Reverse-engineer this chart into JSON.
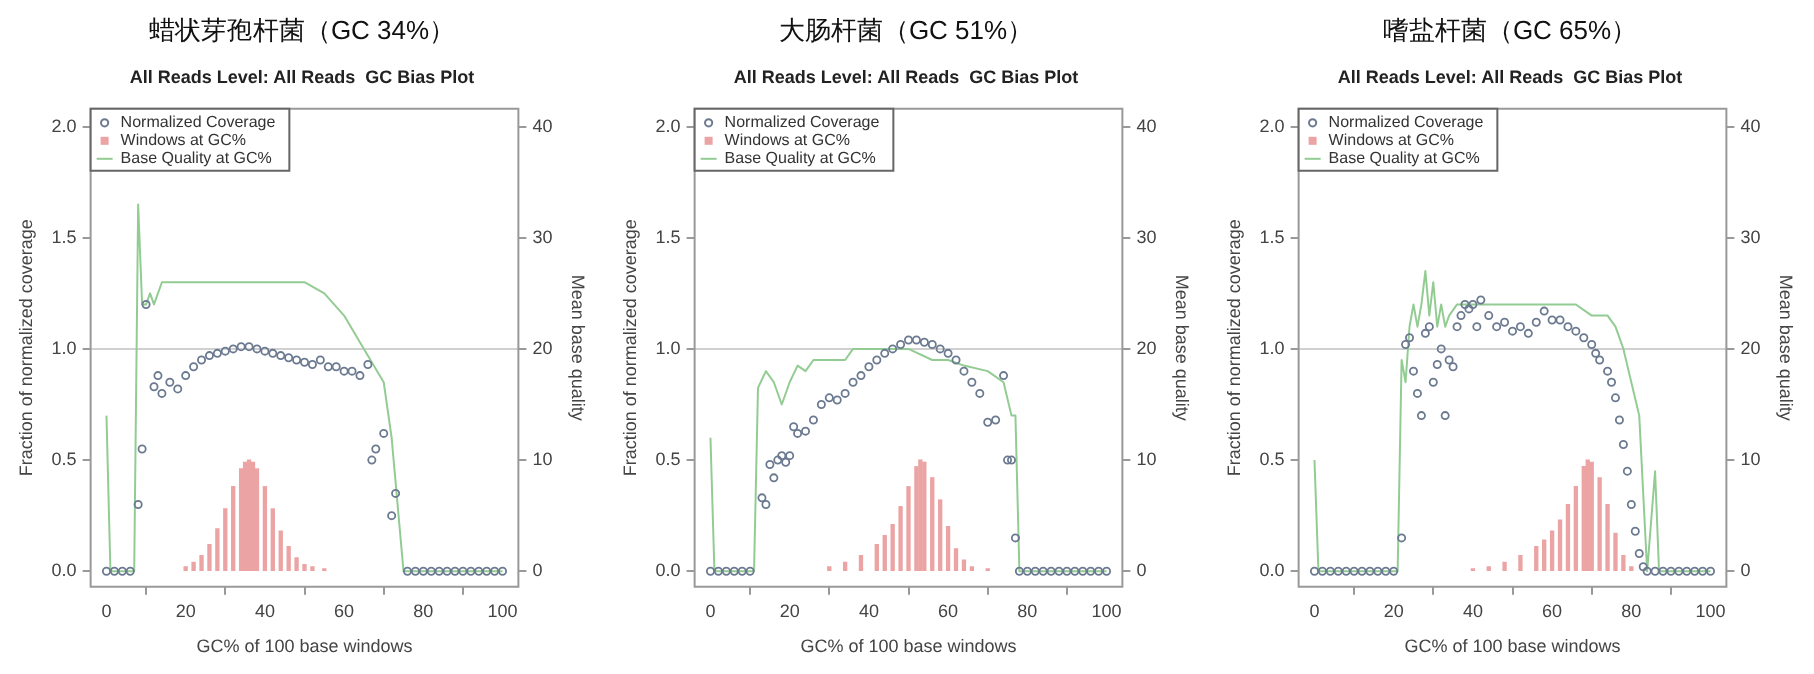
{
  "chart_data": [
    {
      "type": "scatter",
      "title": "蜡状芽孢杆菌（GC 34%）",
      "subtitle": "All Reads Level: All Reads  GC Bias Plot",
      "xlabel": "GC% of 100 base windows",
      "ylabel": "Fraction of normalized coverage",
      "y2label": "Mean base quality",
      "xlim": [
        -4,
        104
      ],
      "xticks": [
        0,
        20,
        40,
        60,
        80,
        100
      ],
      "ylim": [
        -0.07,
        2.08
      ],
      "yticks": [
        {
          "value": 0,
          "label": "0.0"
        },
        {
          "value": 0.5,
          "label": "0.5"
        },
        {
          "value": 1,
          "label": "1.0"
        },
        {
          "value": 1.5,
          "label": "1.5"
        },
        {
          "value": 2,
          "label": "2.0"
        }
      ],
      "y2lim": [
        -1.4,
        41.6
      ],
      "y2ticks": [
        0,
        10,
        20,
        30,
        40
      ],
      "legend": "top left",
      "ref_lines": [
        {
          "axis": "y",
          "value": 1.0,
          "color": "#d0d0d0"
        }
      ],
      "series": [
        {
          "name": "Normalized Coverage",
          "marker": "circle",
          "color": "#6b7a90",
          "x": [
            0,
            2,
            4,
            6,
            8,
            9,
            10,
            12,
            13,
            14,
            16,
            18,
            20,
            22,
            24,
            26,
            28,
            30,
            32,
            34,
            36,
            38,
            40,
            42,
            44,
            46,
            48,
            50,
            52,
            54,
            56,
            58,
            60,
            62,
            64,
            66,
            67,
            68,
            70,
            72,
            73,
            76,
            78,
            80,
            82,
            84,
            86,
            88,
            90,
            92,
            94,
            96,
            98,
            100
          ],
          "values": [
            0,
            0,
            0,
            0,
            0.3,
            0.55,
            1.2,
            0.83,
            0.88,
            0.8,
            0.85,
            0.82,
            0.88,
            0.92,
            0.95,
            0.97,
            0.98,
            0.99,
            1.0,
            1.01,
            1.01,
            1.0,
            0.99,
            0.98,
            0.97,
            0.96,
            0.95,
            0.94,
            0.93,
            0.95,
            0.92,
            0.92,
            0.9,
            0.9,
            0.88,
            0.93,
            0.5,
            0.55,
            0.62,
            0.25,
            0.35,
            0,
            0,
            0,
            0,
            0,
            0,
            0,
            0,
            0,
            0,
            0,
            0,
            0
          ]
        },
        {
          "name": "Windows at GC%",
          "type": "bar",
          "color": "#eba3a3",
          "x": [
            20,
            22,
            24,
            26,
            28,
            30,
            32,
            34,
            35,
            36,
            37,
            38,
            40,
            42,
            44,
            46,
            48,
            50,
            52,
            55
          ],
          "values": [
            0.02,
            0.04,
            0.07,
            0.12,
            0.19,
            0.28,
            0.38,
            0.46,
            0.49,
            0.5,
            0.49,
            0.46,
            0.38,
            0.28,
            0.18,
            0.11,
            0.06,
            0.03,
            0.02,
            0.01
          ]
        },
        {
          "name": "Base Quality at GC%",
          "type": "line",
          "axis": "y2",
          "color": "#93cc93",
          "x": [
            0,
            1,
            7,
            8,
            9,
            10,
            11,
            12,
            14,
            20,
            30,
            40,
            50,
            55,
            60,
            65,
            70,
            72,
            75,
            100
          ],
          "values": [
            14,
            0,
            0,
            33,
            24,
            24,
            25,
            24,
            26,
            26,
            26,
            26,
            26,
            25,
            23,
            20,
            17,
            12,
            0,
            0
          ]
        }
      ]
    },
    {
      "type": "scatter",
      "title": "大肠杆菌（GC 51%）",
      "subtitle": "All Reads Level: All Reads  GC Bias Plot",
      "xlabel": "GC% of 100 base windows",
      "ylabel": "Fraction of normalized coverage",
      "y2label": "Mean base quality",
      "xlim": [
        -4,
        104
      ],
      "xticks": [
        0,
        20,
        40,
        60,
        80,
        100
      ],
      "ylim": [
        -0.07,
        2.08
      ],
      "yticks": [
        {
          "value": 0,
          "label": "0.0"
        },
        {
          "value": 0.5,
          "label": "0.5"
        },
        {
          "value": 1,
          "label": "1.0"
        },
        {
          "value": 1.5,
          "label": "1.5"
        },
        {
          "value": 2,
          "label": "2.0"
        }
      ],
      "y2lim": [
        -1.4,
        41.6
      ],
      "y2ticks": [
        0,
        10,
        20,
        30,
        40
      ],
      "legend": "top left",
      "ref_lines": [
        {
          "axis": "y",
          "value": 1.0,
          "color": "#d0d0d0"
        }
      ],
      "series": [
        {
          "name": "Normalized Coverage",
          "marker": "circle",
          "color": "#6b7a90",
          "x": [
            0,
            2,
            4,
            6,
            8,
            10,
            13,
            14,
            15,
            16,
            17,
            18,
            19,
            20,
            21,
            22,
            24,
            26,
            28,
            30,
            32,
            34,
            36,
            38,
            40,
            42,
            44,
            46,
            48,
            50,
            52,
            54,
            56,
            58,
            60,
            62,
            64,
            66,
            68,
            70,
            72,
            74,
            75,
            76,
            77,
            78,
            80,
            82,
            84,
            86,
            88,
            90,
            92,
            94,
            96,
            98,
            100
          ],
          "values": [
            0,
            0,
            0,
            0,
            0,
            0,
            0.33,
            0.3,
            0.48,
            0.42,
            0.5,
            0.52,
            0.49,
            0.52,
            0.65,
            0.62,
            0.63,
            0.68,
            0.75,
            0.78,
            0.77,
            0.8,
            0.85,
            0.88,
            0.92,
            0.95,
            0.98,
            1.0,
            1.02,
            1.04,
            1.04,
            1.03,
            1.02,
            1.0,
            0.98,
            0.95,
            0.9,
            0.85,
            0.8,
            0.67,
            0.68,
            0.88,
            0.5,
            0.5,
            0.15,
            0,
            0,
            0,
            0,
            0,
            0,
            0,
            0,
            0,
            0,
            0,
            0
          ]
        },
        {
          "name": "Windows at GC%",
          "type": "bar",
          "color": "#eba3a3",
          "x": [
            30,
            34,
            38,
            42,
            44,
            46,
            48,
            50,
            52,
            53,
            54,
            56,
            58,
            60,
            62,
            64,
            66,
            70
          ],
          "values": [
            0.02,
            0.04,
            0.07,
            0.12,
            0.16,
            0.21,
            0.29,
            0.38,
            0.47,
            0.5,
            0.49,
            0.42,
            0.32,
            0.2,
            0.1,
            0.05,
            0.02,
            0.01
          ]
        },
        {
          "name": "Base Quality at GC%",
          "type": "line",
          "axis": "y2",
          "color": "#93cc93",
          "x": [
            0,
            1,
            11,
            12,
            14,
            16,
            18,
            20,
            22,
            24,
            26,
            30,
            34,
            36,
            40,
            46,
            50,
            56,
            60,
            64,
            70,
            74,
            76,
            77,
            78,
            100
          ],
          "values": [
            12,
            0,
            0,
            16.5,
            18,
            17,
            15,
            17,
            18.5,
            18,
            19,
            19,
            19,
            20,
            20,
            20,
            20,
            19,
            19,
            18.5,
            18,
            17,
            14,
            14,
            0,
            0
          ]
        }
      ]
    },
    {
      "type": "scatter",
      "title": "嗜盐杆菌（GC 65%）",
      "subtitle": "All Reads Level: All Reads  GC Bias Plot",
      "xlabel": "GC% of 100 base windows",
      "ylabel": "Fraction of normalized coverage",
      "y2label": "Mean base quality",
      "xlim": [
        -4,
        104
      ],
      "xticks": [
        0,
        20,
        40,
        60,
        80,
        100
      ],
      "ylim": [
        -0.07,
        2.08
      ],
      "yticks": [
        {
          "value": 0,
          "label": "0.0"
        },
        {
          "value": 0.5,
          "label": "0.5"
        },
        {
          "value": 1,
          "label": "1.0"
        },
        {
          "value": 1.5,
          "label": "1.5"
        },
        {
          "value": 2,
          "label": "2.0"
        }
      ],
      "y2lim": [
        -1.4,
        41.6
      ],
      "y2ticks": [
        0,
        10,
        20,
        30,
        40
      ],
      "legend": "top left",
      "ref_lines": [
        {
          "axis": "y",
          "value": 1.0,
          "color": "#d0d0d0"
        }
      ],
      "series": [
        {
          "name": "Normalized Coverage",
          "marker": "circle",
          "color": "#6b7a90",
          "x": [
            0,
            2,
            4,
            6,
            8,
            10,
            12,
            14,
            16,
            18,
            20,
            22,
            23,
            24,
            25,
            26,
            27,
            28,
            29,
            30,
            31,
            32,
            33,
            34,
            35,
            36,
            37,
            38,
            39,
            40,
            41,
            42,
            44,
            46,
            48,
            50,
            52,
            54,
            56,
            58,
            60,
            62,
            64,
            66,
            68,
            70,
            71,
            72,
            74,
            75,
            76,
            77,
            78,
            79,
            80,
            81,
            82,
            83,
            84,
            86,
            88,
            90,
            92,
            94,
            96,
            98,
            100
          ],
          "values": [
            0,
            0,
            0,
            0,
            0,
            0,
            0,
            0,
            0,
            0,
            0,
            0.15,
            1.02,
            1.05,
            0.9,
            0.8,
            0.7,
            1.07,
            1.1,
            0.85,
            0.93,
            1.0,
            0.7,
            0.95,
            0.92,
            1.1,
            1.15,
            1.2,
            1.18,
            1.2,
            1.1,
            1.22,
            1.15,
            1.1,
            1.12,
            1.08,
            1.1,
            1.07,
            1.12,
            1.17,
            1.13,
            1.13,
            1.1,
            1.08,
            1.05,
            1.02,
            0.98,
            0.95,
            0.9,
            0.85,
            0.78,
            0.68,
            0.57,
            0.45,
            0.3,
            0.18,
            0.08,
            0.02,
            0,
            0,
            0,
            0,
            0,
            0,
            0,
            0,
            0
          ]
        },
        {
          "name": "Windows at GC%",
          "type": "bar",
          "color": "#eba3a3",
          "x": [
            40,
            44,
            48,
            52,
            56,
            58,
            60,
            62,
            64,
            66,
            68,
            69,
            70,
            72,
            74,
            76,
            78,
            80
          ],
          "values": [
            0.01,
            0.02,
            0.04,
            0.07,
            0.11,
            0.14,
            0.18,
            0.23,
            0.3,
            0.38,
            0.47,
            0.5,
            0.49,
            0.42,
            0.3,
            0.17,
            0.07,
            0.02
          ]
        },
        {
          "name": "Base Quality at GC%",
          "type": "line",
          "axis": "y2",
          "color": "#93cc93",
          "x": [
            0,
            1,
            21,
            22,
            23,
            24,
            25,
            26,
            27,
            28,
            29,
            30,
            31,
            32,
            33,
            34,
            36,
            40,
            50,
            60,
            66,
            70,
            74,
            76,
            78,
            82,
            84,
            86,
            87,
            100
          ],
          "values": [
            10,
            0,
            0,
            19,
            17,
            22,
            24,
            22,
            24,
            27,
            23,
            26,
            22,
            24,
            22,
            23,
            24,
            24,
            24,
            24,
            24,
            23,
            23,
            22,
            20,
            14,
            0,
            9,
            0,
            0
          ]
        }
      ]
    }
  ]
}
